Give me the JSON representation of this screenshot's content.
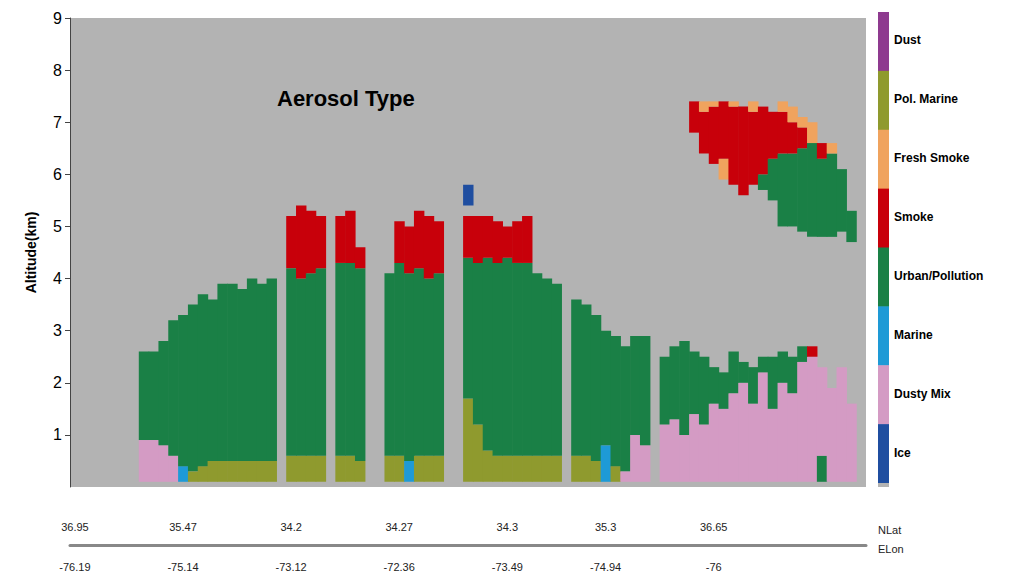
{
  "chart_data": {
    "type": "heatmap",
    "title": "Aerosol Type",
    "y_label": "Altitude(km)",
    "x_labels": [
      "NLat",
      "ELon"
    ],
    "categories": [
      "36.95",
      null,
      null,
      null,
      null,
      null,
      null,
      null,
      null,
      null,
      null,
      "35.47",
      null,
      null,
      null,
      null,
      null,
      null,
      null,
      null,
      null,
      null,
      "34.2",
      null,
      null,
      null,
      null,
      null,
      null,
      null,
      null,
      null,
      null,
      "34.27",
      null,
      null,
      null,
      null,
      null,
      null,
      null,
      null,
      null,
      null,
      "34.3",
      null,
      null,
      null,
      null,
      null,
      null,
      null,
      null,
      null,
      "35.3",
      null,
      null,
      null,
      null,
      null,
      null,
      null,
      null,
      null,
      null,
      "36.65",
      null,
      null,
      null,
      null,
      null,
      null,
      null,
      null,
      null,
      null,
      null,
      null,
      null,
      null,
      null
    ],
    "categories_lon": [
      "-76.19",
      null,
      null,
      null,
      null,
      null,
      null,
      null,
      null,
      null,
      null,
      "-75.14",
      null,
      null,
      null,
      null,
      null,
      null,
      null,
      null,
      null,
      null,
      "-73.12",
      null,
      null,
      null,
      null,
      null,
      null,
      null,
      null,
      null,
      null,
      "-72.36",
      null,
      null,
      null,
      null,
      null,
      null,
      null,
      null,
      null,
      null,
      "-73.49",
      null,
      null,
      null,
      null,
      null,
      null,
      null,
      null,
      null,
      "-74.94",
      null,
      null,
      null,
      null,
      null,
      null,
      null,
      null,
      null,
      null,
      "-76",
      null,
      null,
      null,
      null,
      null,
      null,
      null,
      null,
      null,
      null,
      null,
      null,
      null,
      null,
      null
    ],
    "ylim": [
      0,
      9
    ],
    "yticks": [
      1,
      2,
      3,
      4,
      5,
      6,
      7,
      8,
      9
    ],
    "classes": [
      {
        "name": "Dust",
        "color": "#8e3a8f"
      },
      {
        "name": "Pol. Marine",
        "color": "#8f9a2e"
      },
      {
        "name": "Fresh Smoke",
        "color": "#f0a35e"
      },
      {
        "name": "Smoke",
        "color": "#c8000a"
      },
      {
        "name": "Urban/Pollution",
        "color": "#1a8046"
      },
      {
        "name": "Marine",
        "color": "#1e9ad6"
      },
      {
        "name": "Dusty Mix",
        "color": "#d49bc4"
      },
      {
        "name": "Ice",
        "color": "#1f4ea0"
      }
    ],
    "profiles": [
      [],
      [],
      [],
      [],
      [],
      [],
      [],
      [
        [
          0.1,
          0.9,
          6
        ],
        [
          0.9,
          2.6,
          4
        ]
      ],
      [
        [
          0.1,
          0.9,
          6
        ],
        [
          0.9,
          2.6,
          4
        ]
      ],
      [
        [
          0.1,
          0.8,
          6
        ],
        [
          0.8,
          2.8,
          4
        ]
      ],
      [
        [
          0.1,
          0.6,
          6
        ],
        [
          0.6,
          3.2,
          4
        ]
      ],
      [
        [
          0.1,
          0.4,
          5
        ],
        [
          0.4,
          3.3,
          4
        ]
      ],
      [
        [
          0.1,
          0.3,
          1
        ],
        [
          0.3,
          3.5,
          4
        ]
      ],
      [
        [
          0.1,
          0.4,
          1
        ],
        [
          0.4,
          3.7,
          4
        ]
      ],
      [
        [
          0.1,
          0.5,
          1
        ],
        [
          0.5,
          3.6,
          4
        ]
      ],
      [
        [
          0.1,
          0.5,
          1
        ],
        [
          0.5,
          3.9,
          4
        ]
      ],
      [
        [
          0.1,
          0.5,
          1
        ],
        [
          0.5,
          3.9,
          4
        ]
      ],
      [
        [
          0.1,
          0.5,
          1
        ],
        [
          0.5,
          3.8,
          4
        ]
      ],
      [
        [
          0.1,
          0.5,
          1
        ],
        [
          0.5,
          4.0,
          4
        ]
      ],
      [
        [
          0.1,
          0.5,
          1
        ],
        [
          0.5,
          3.9,
          4
        ]
      ],
      [
        [
          0.1,
          0.5,
          1
        ],
        [
          0.5,
          4.0,
          4
        ]
      ],
      [],
      [
        [
          0.1,
          0.6,
          1
        ],
        [
          0.6,
          4.2,
          4
        ],
        [
          4.2,
          5.2,
          3
        ]
      ],
      [
        [
          0.1,
          0.6,
          1
        ],
        [
          0.6,
          4.0,
          4
        ],
        [
          4.0,
          5.4,
          3
        ]
      ],
      [
        [
          0.1,
          0.6,
          1
        ],
        [
          0.6,
          4.1,
          4
        ],
        [
          4.1,
          5.3,
          3
        ]
      ],
      [
        [
          0.1,
          0.6,
          1
        ],
        [
          0.6,
          4.2,
          4
        ],
        [
          4.2,
          5.2,
          3
        ]
      ],
      [],
      [
        [
          0.1,
          0.6,
          1
        ],
        [
          0.6,
          4.3,
          4
        ],
        [
          4.3,
          5.2,
          3
        ]
      ],
      [
        [
          0.1,
          0.6,
          1
        ],
        [
          0.6,
          4.3,
          4
        ],
        [
          4.3,
          5.3,
          3
        ]
      ],
      [
        [
          0.1,
          0.5,
          1
        ],
        [
          0.5,
          4.2,
          4
        ],
        [
          4.2,
          4.6,
          3
        ]
      ],
      [],
      [],
      [
        [
          0.1,
          0.6,
          1
        ],
        [
          0.6,
          4.1,
          4
        ]
      ],
      [
        [
          0.1,
          0.6,
          1
        ],
        [
          0.6,
          4.3,
          4
        ],
        [
          4.3,
          5.1,
          3
        ]
      ],
      [
        [
          0.1,
          0.5,
          5
        ],
        [
          0.5,
          4.1,
          4
        ],
        [
          4.1,
          5.0,
          3
        ]
      ],
      [
        [
          0.1,
          0.6,
          1
        ],
        [
          0.6,
          4.2,
          4
        ],
        [
          4.2,
          5.3,
          3
        ]
      ],
      [
        [
          0.1,
          0.6,
          1
        ],
        [
          0.6,
          4.0,
          4
        ],
        [
          4.0,
          5.2,
          3
        ]
      ],
      [
        [
          0.1,
          0.6,
          1
        ],
        [
          0.6,
          4.1,
          4
        ],
        [
          4.1,
          5.1,
          3
        ]
      ],
      [],
      [],
      [
        [
          0.1,
          1.7,
          1
        ],
        [
          1.7,
          4.4,
          4
        ],
        [
          4.4,
          5.2,
          3
        ],
        [
          5.4,
          5.8,
          7
        ]
      ],
      [
        [
          0.1,
          1.2,
          1
        ],
        [
          1.2,
          4.3,
          4
        ],
        [
          4.3,
          5.2,
          3
        ]
      ],
      [
        [
          0.1,
          0.7,
          1
        ],
        [
          0.7,
          4.4,
          4
        ],
        [
          4.4,
          5.2,
          3
        ]
      ],
      [
        [
          0.1,
          0.6,
          1
        ],
        [
          0.6,
          4.3,
          4
        ],
        [
          4.3,
          5.1,
          3
        ]
      ],
      [
        [
          0.1,
          0.6,
          1
        ],
        [
          0.6,
          4.4,
          4
        ],
        [
          4.4,
          5.0,
          3
        ]
      ],
      [
        [
          0.1,
          0.6,
          1
        ],
        [
          0.6,
          4.3,
          4
        ],
        [
          4.3,
          5.1,
          3
        ]
      ],
      [
        [
          0.1,
          0.6,
          1
        ],
        [
          0.6,
          4.3,
          4
        ],
        [
          4.3,
          5.2,
          3
        ]
      ],
      [
        [
          0.1,
          0.6,
          1
        ],
        [
          0.6,
          4.1,
          4
        ]
      ],
      [
        [
          0.1,
          0.6,
          1
        ],
        [
          0.6,
          4.0,
          4
        ]
      ],
      [
        [
          0.1,
          0.6,
          1
        ],
        [
          0.6,
          3.9,
          4
        ]
      ],
      [],
      [
        [
          0.1,
          0.6,
          1
        ],
        [
          0.6,
          3.6,
          4
        ]
      ],
      [
        [
          0.1,
          0.6,
          1
        ],
        [
          0.6,
          3.5,
          4
        ]
      ],
      [
        [
          0.1,
          0.5,
          1
        ],
        [
          0.5,
          3.3,
          4
        ]
      ],
      [
        [
          0.1,
          0.8,
          5
        ],
        [
          0.8,
          3.0,
          4
        ]
      ],
      [
        [
          0.1,
          0.4,
          1
        ],
        [
          0.4,
          2.9,
          4
        ]
      ],
      [
        [
          0.1,
          0.3,
          6
        ],
        [
          0.3,
          2.7,
          4
        ]
      ],
      [
        [
          0.1,
          1.0,
          6
        ],
        [
          1.0,
          2.9,
          4
        ]
      ],
      [
        [
          0.1,
          0.8,
          6
        ],
        [
          0.8,
          2.9,
          4
        ]
      ],
      [],
      [
        [
          0.1,
          1.2,
          6
        ],
        [
          1.2,
          2.5,
          4
        ]
      ],
      [
        [
          0.1,
          1.3,
          6
        ],
        [
          1.3,
          2.7,
          4
        ]
      ],
      [
        [
          0.1,
          1.0,
          6
        ],
        [
          1.0,
          2.8,
          4
        ]
      ],
      [
        [
          0.1,
          1.4,
          6
        ],
        [
          1.4,
          2.6,
          4
        ],
        [
          6.8,
          7.4,
          3
        ]
      ],
      [
        [
          0.1,
          1.2,
          6
        ],
        [
          1.2,
          2.5,
          4
        ],
        [
          6.4,
          7.2,
          3
        ],
        [
          7.2,
          7.4,
          2
        ]
      ],
      [
        [
          0.1,
          1.6,
          6
        ],
        [
          1.6,
          2.3,
          4
        ],
        [
          6.2,
          7.3,
          3
        ],
        [
          7.3,
          7.4,
          2
        ]
      ],
      [
        [
          0.1,
          1.5,
          6
        ],
        [
          1.5,
          2.2,
          4
        ],
        [
          5.9,
          6.3,
          2
        ],
        [
          6.3,
          7.4,
          3
        ]
      ],
      [
        [
          0.1,
          1.8,
          6
        ],
        [
          1.8,
          2.6,
          4
        ],
        [
          5.8,
          7.3,
          3
        ],
        [
          7.3,
          7.4,
          2
        ]
      ],
      [
        [
          0.1,
          2.0,
          6
        ],
        [
          2.0,
          2.4,
          4
        ],
        [
          5.6,
          7.3,
          3
        ]
      ],
      [
        [
          0.1,
          1.6,
          6
        ],
        [
          1.6,
          2.3,
          4
        ],
        [
          5.8,
          7.2,
          3
        ],
        [
          7.2,
          7.4,
          2
        ]
      ],
      [
        [
          0.1,
          2.2,
          6
        ],
        [
          2.2,
          2.5,
          4
        ],
        [
          5.7,
          6.0,
          4
        ],
        [
          6.0,
          7.3,
          3
        ]
      ],
      [
        [
          0.1,
          1.5,
          6
        ],
        [
          1.5,
          2.5,
          4
        ],
        [
          5.5,
          6.3,
          4
        ],
        [
          6.3,
          7.2,
          3
        ]
      ],
      [
        [
          0.1,
          2.0,
          6
        ],
        [
          2.0,
          2.6,
          4
        ],
        [
          5.0,
          6.4,
          4
        ],
        [
          6.4,
          7.2,
          3
        ],
        [
          7.2,
          7.4,
          2
        ]
      ],
      [
        [
          0.1,
          1.8,
          6
        ],
        [
          1.8,
          2.5,
          4
        ],
        [
          5.0,
          6.4,
          4
        ],
        [
          6.4,
          7.0,
          3
        ],
        [
          7.0,
          7.3,
          2
        ]
      ],
      [
        [
          0.1,
          2.4,
          6
        ],
        [
          2.4,
          2.7,
          4
        ],
        [
          4.9,
          6.5,
          4
        ],
        [
          6.5,
          6.9,
          3
        ],
        [
          6.9,
          7.1,
          2
        ]
      ],
      [
        [
          0.1,
          2.5,
          6
        ],
        [
          2.5,
          2.7,
          3
        ],
        [
          4.8,
          6.6,
          4
        ],
        [
          6.6,
          7.0,
          2
        ]
      ],
      [
        [
          0.1,
          0.6,
          4
        ],
        [
          0.6,
          2.3,
          6
        ],
        [
          4.8,
          6.3,
          4
        ],
        [
          6.3,
          6.6,
          3
        ]
      ],
      [
        [
          0.1,
          1.9,
          6
        ],
        [
          4.8,
          6.4,
          4
        ],
        [
          6.4,
          6.6,
          2
        ]
      ],
      [
        [
          0.1,
          2.3,
          6
        ],
        [
          4.9,
          6.1,
          4
        ]
      ],
      [
        [
          0.1,
          1.6,
          6
        ],
        [
          4.7,
          5.3,
          4
        ]
      ],
      []
    ]
  }
}
